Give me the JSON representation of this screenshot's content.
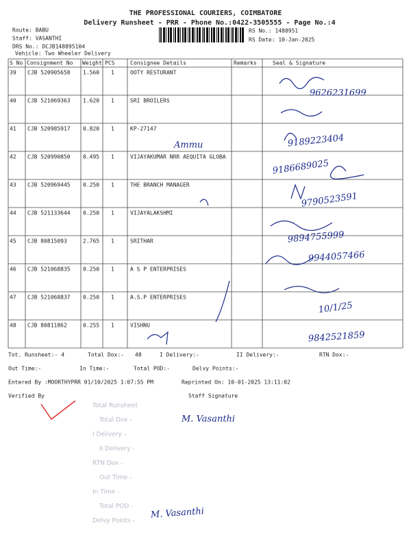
{
  "header": {
    "company": "THE PROFESSIONAL COURIERS, COIMBATORE",
    "subtitle": "Delivery Runsheet - PRR - Phone No.:0422-3505555 - Page No.:4"
  },
  "info": {
    "route": "Route: BABU",
    "staff": "Staff: VASANTHI",
    "drs": "DRS No.: DCJB148895104",
    "vehicle": "Vehicle: Two Wheeler Delivery",
    "rs_no": "RS No.: 1488951",
    "rs_date": "RS Date: 10-Jan-2025"
  },
  "table": {
    "columns": [
      "S No",
      "Consignment No",
      "Weight",
      "PCS",
      "Consignee Details",
      "Remarks",
      "Seal & Signature"
    ],
    "rows": [
      [
        "39",
        "CJB 520905658",
        "1.560",
        "1",
        "OOTY RESTURANT"
      ],
      [
        "40",
        "CJB 521069363",
        "1.620",
        "1",
        "SRI BROILERS"
      ],
      [
        "41",
        "CJB 520985917",
        "0.820",
        "1",
        "KP-27147"
      ],
      [
        "42",
        "CJB 520990850",
        "0.495",
        "1",
        "VIJAYAKUMAR NRR AEQUITA GLOBA"
      ],
      [
        "43",
        "CJB 520969445",
        "0.250",
        "1",
        "THE BRANCH MANAGER"
      ],
      [
        "44",
        "CJB 521133644",
        "0.250",
        "1",
        "VIJAYALAKSHMI"
      ],
      [
        "45",
        "CJB 80815093",
        "2.765",
        "1",
        "SRITHAR"
      ],
      [
        "46",
        "CJB 521068835",
        "0.250",
        "1",
        "A S P ENTERPRISES"
      ],
      [
        "47",
        "CJB 521068837",
        "0.250",
        "1",
        "A.S.P ENTERPRISES"
      ],
      [
        "48",
        "CJB 80811862",
        "0.255",
        "1",
        "VISHNU"
      ]
    ]
  },
  "totals": {
    "runsheet": "Tot. Runsheet:- 4",
    "total_dox": "Total Dox:-",
    "total_dox_value": "48",
    "i_delivery": "I Delivery:-",
    "ii_delivery": "II Delivery:-",
    "rtn_dox": "RTN Dox:-",
    "out_time": "Out Time:-",
    "in_time": "In Time:-",
    "total_pod": "Total POD:-",
    "delvy_points": "Delvy Points:-"
  },
  "entry": {
    "entered_by": "Entered By :MOORTHYPRR 01/10/2025 1:07:55 PM",
    "reprinted": "Reprinted On: 10-01-2025 13:11:02"
  },
  "signatures": {
    "verified_by": "Verified By",
    "staff_signature": "Staff Signature"
  },
  "stamp": [
    "Total Runsheet",
    "Total Dox -",
    "I Delivery -",
    "II Delivery -",
    "RTN Dox -",
    "Out Time -",
    "In Time -",
    "Total POD -",
    "Delvy Points -"
  ],
  "handwriting": [
    "9626231699",
    "9189223404",
    "9186689025",
    "9790523591",
    "9894755999",
    "9944057466",
    "10/1/25",
    "9842521859",
    "Ammu",
    "M. Vasanthi",
    "M. Vasanthi"
  ]
}
